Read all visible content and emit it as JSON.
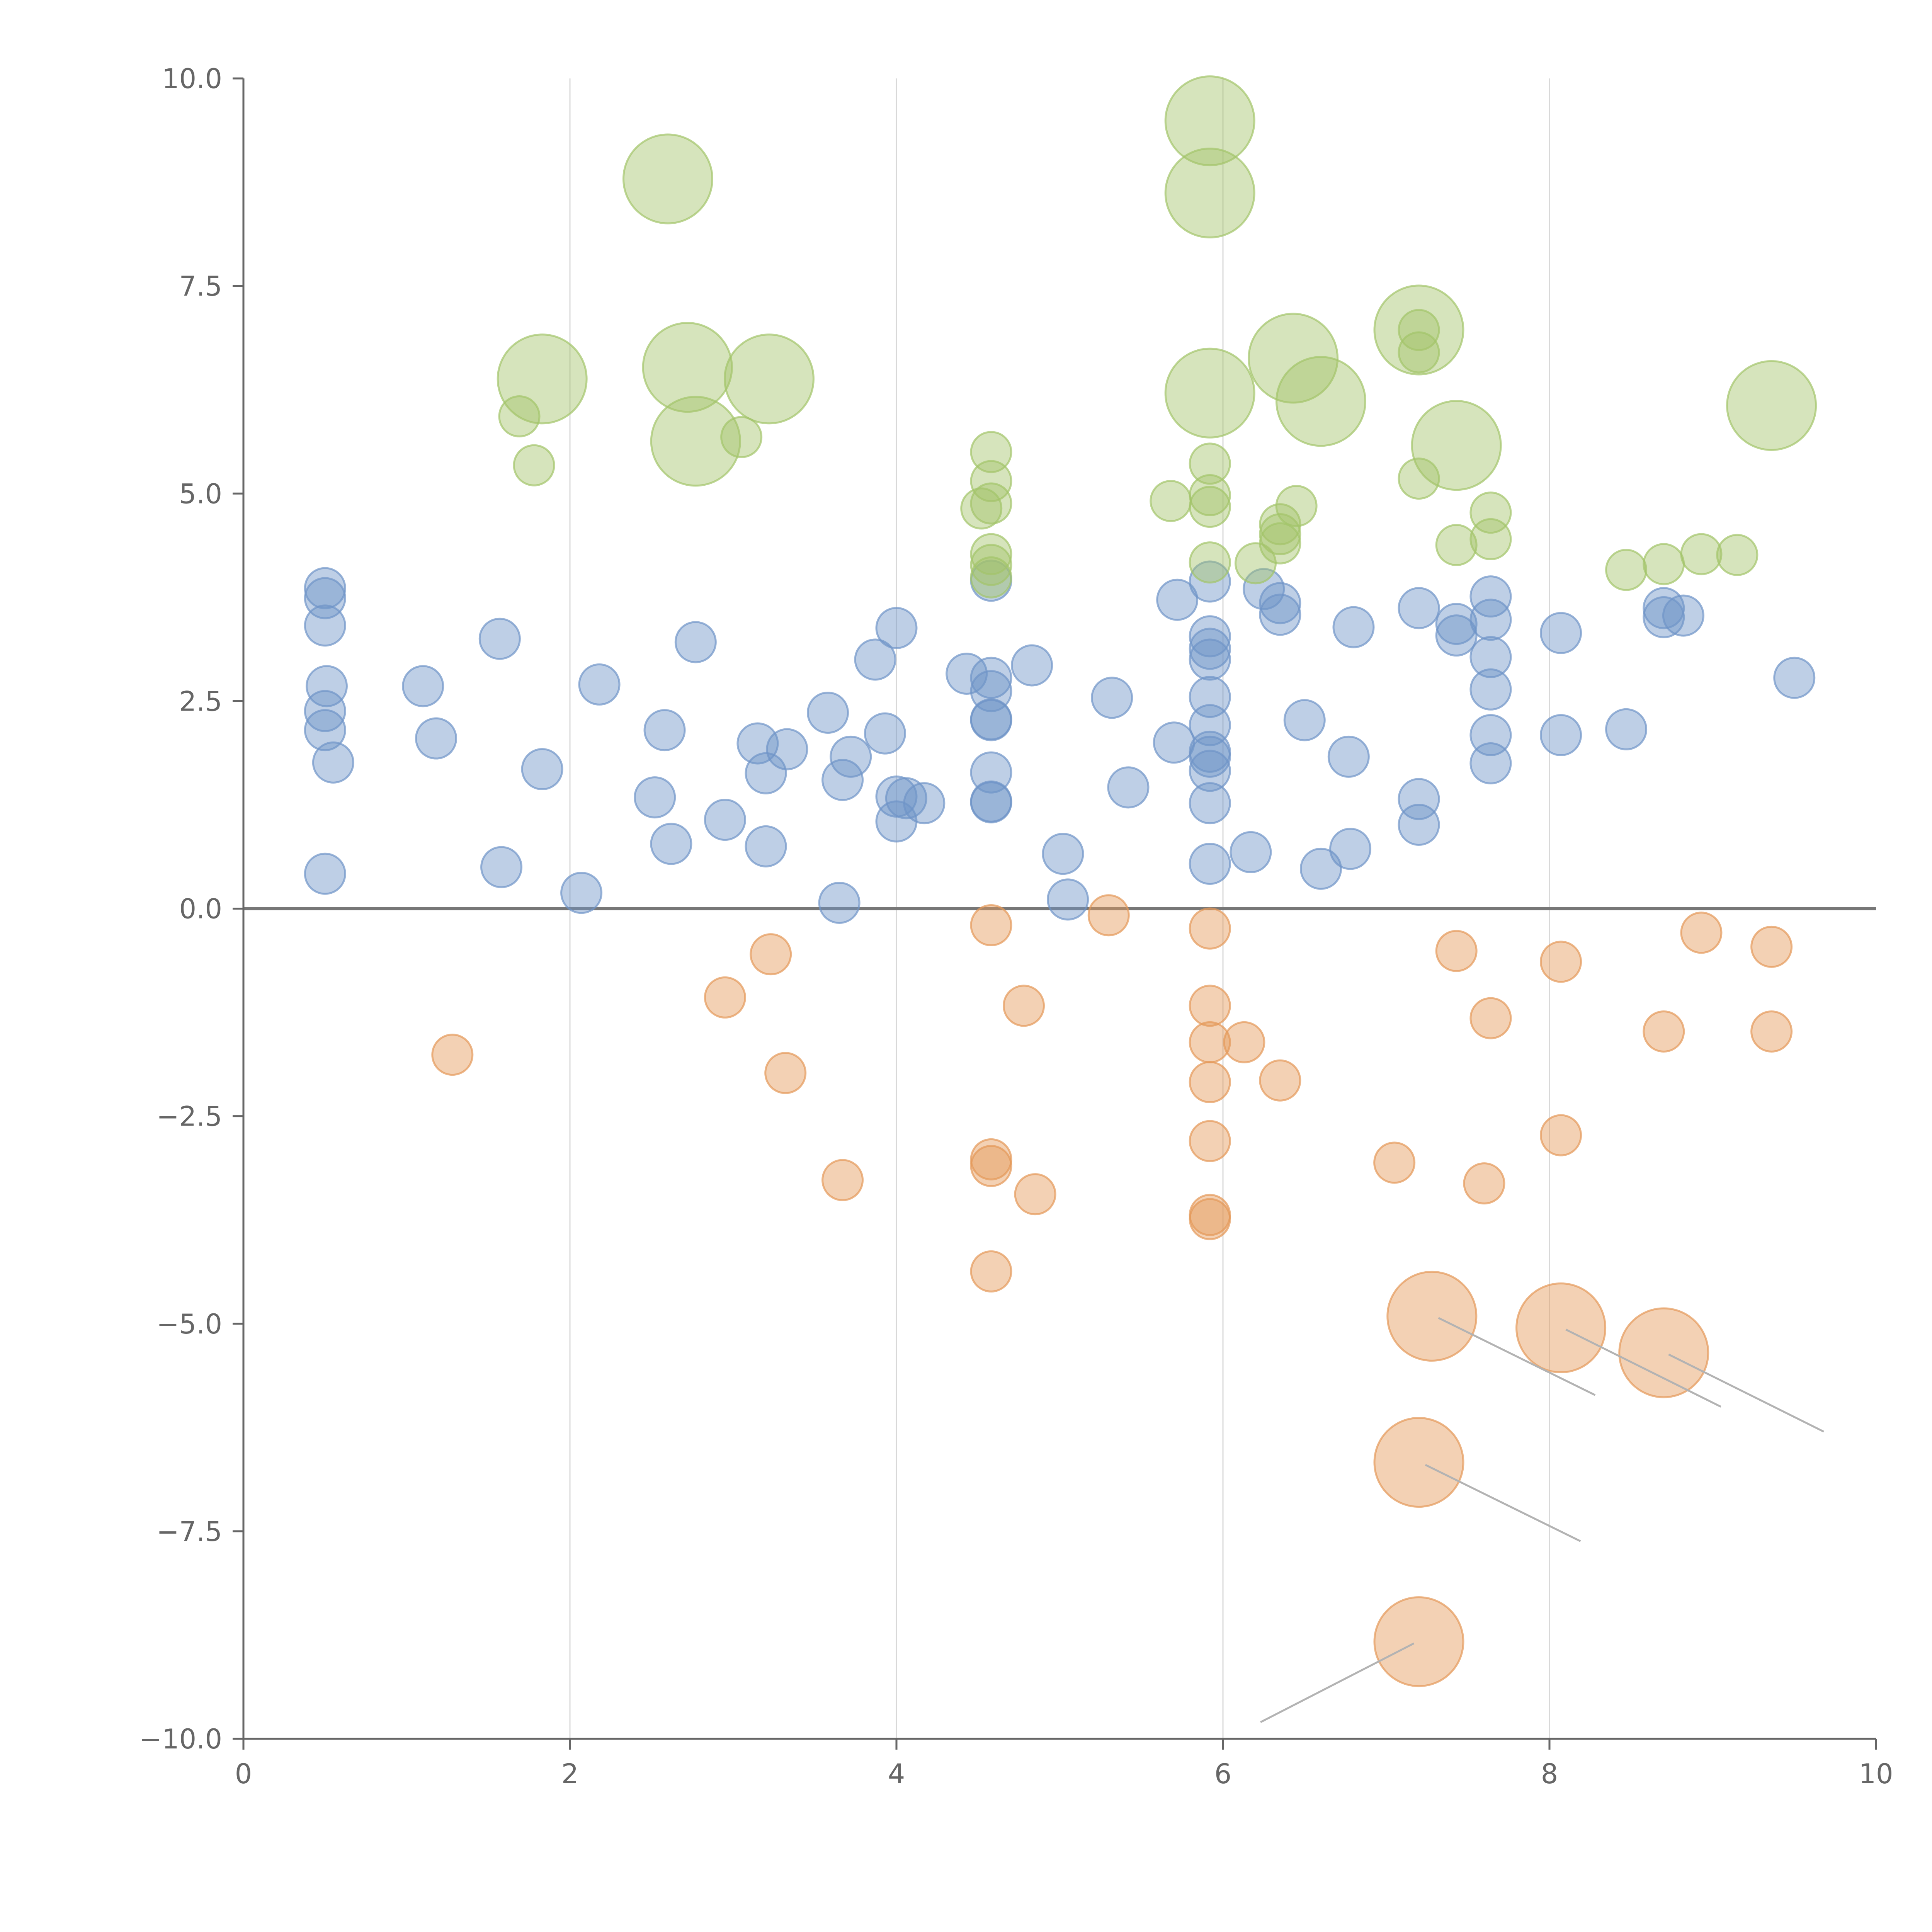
{
  "colors": {
    "positive": "#6f94c8",
    "high": "#a3c46a",
    "negative": "#e49858",
    "axis": "#666666",
    "grid": "#d8d8d8",
    "leader": "#b3b3b3"
  },
  "chart_data": {
    "type": "scatter",
    "title": "",
    "xlabel": "",
    "ylabel": "",
    "xlim": [
      0,
      10
    ],
    "ylim": [
      -10,
      10
    ],
    "x_ticks": [
      0,
      2,
      4,
      6,
      8,
      10
    ],
    "x_tick_labels": [
      "0",
      "2",
      "4",
      "6",
      "8",
      "10"
    ],
    "y_ticks": [
      10,
      7.5,
      5,
      2.5,
      0,
      -2.5,
      -5,
      -7.5,
      -10
    ],
    "y_tick_labels": [
      "10.0",
      "7.5",
      "5.0",
      "2.5",
      "0.0",
      "−2.5",
      "−5.0",
      "−7.5",
      "−10.0"
    ],
    "grid": "vertical lines at x = 2, 4, 6, 8",
    "reference_line": 0,
    "legend": "none",
    "series": [
      {
        "color_key": "positive",
        "points": [
          {
            "x": 0.5,
            "y": 3.86,
            "r": 1
          },
          {
            "x": 0.5,
            "y": 3.74,
            "r": 1
          },
          {
            "x": 0.5,
            "y": 3.41,
            "r": 1
          },
          {
            "x": 0.51,
            "y": 2.68,
            "r": 1
          },
          {
            "x": 0.5,
            "y": 2.38,
            "r": 1
          },
          {
            "x": 0.5,
            "y": 2.15,
            "r": 1
          },
          {
            "x": 0.55,
            "y": 1.76,
            "r": 1
          },
          {
            "x": 0.5,
            "y": 0.42,
            "r": 1
          },
          {
            "x": 1.1,
            "y": 2.68,
            "r": 1
          },
          {
            "x": 1.18,
            "y": 2.05,
            "r": 1
          },
          {
            "x": 1.57,
            "y": 3.25,
            "r": 1
          },
          {
            "x": 1.58,
            "y": 0.5,
            "r": 1
          },
          {
            "x": 1.83,
            "y": 1.68,
            "r": 1
          },
          {
            "x": 2.07,
            "y": 0.19,
            "r": 1
          },
          {
            "x": 2.18,
            "y": 2.7,
            "r": 1
          },
          {
            "x": 2.52,
            "y": 1.34,
            "r": 1
          },
          {
            "x": 2.58,
            "y": 2.15,
            "r": 1
          },
          {
            "x": 2.62,
            "y": 0.78,
            "r": 1
          },
          {
            "x": 2.77,
            "y": 3.21,
            "r": 1
          },
          {
            "x": 2.95,
            "y": 1.07,
            "r": 1
          },
          {
            "x": 3.15,
            "y": 1.99,
            "r": 1
          },
          {
            "x": 3.2,
            "y": 1.63,
            "r": 1
          },
          {
            "x": 3.2,
            "y": 0.75,
            "r": 1
          },
          {
            "x": 3.33,
            "y": 1.92,
            "r": 1
          },
          {
            "x": 3.58,
            "y": 2.36,
            "r": 1
          },
          {
            "x": 3.65,
            "y": 0.07,
            "r": 1
          },
          {
            "x": 3.67,
            "y": 1.55,
            "r": 1
          },
          {
            "x": 3.72,
            "y": 1.83,
            "r": 1
          },
          {
            "x": 3.87,
            "y": 3.0,
            "r": 1
          },
          {
            "x": 3.93,
            "y": 2.11,
            "r": 1
          },
          {
            "x": 4.0,
            "y": 3.38,
            "r": 1
          },
          {
            "x": 4.0,
            "y": 1.35,
            "r": 1
          },
          {
            "x": 4.0,
            "y": 1.05,
            "r": 1
          },
          {
            "x": 4.06,
            "y": 1.33,
            "r": 1
          },
          {
            "x": 4.17,
            "y": 1.27,
            "r": 1
          },
          {
            "x": 4.43,
            "y": 2.83,
            "r": 1
          },
          {
            "x": 4.58,
            "y": 3.95,
            "r": 1
          },
          {
            "x": 4.58,
            "y": 2.78,
            "r": 1
          },
          {
            "x": 4.58,
            "y": 2.62,
            "r": 1
          },
          {
            "x": 4.58,
            "y": 2.28,
            "r": 1
          },
          {
            "x": 4.58,
            "y": 2.27,
            "r": 1
          },
          {
            "x": 4.58,
            "y": 1.64,
            "r": 1
          },
          {
            "x": 4.58,
            "y": 1.29,
            "r": 1
          },
          {
            "x": 4.58,
            "y": 1.28,
            "r": 1
          },
          {
            "x": 4.83,
            "y": 2.93,
            "r": 1
          },
          {
            "x": 5.02,
            "y": 0.66,
            "r": 1
          },
          {
            "x": 5.05,
            "y": 0.11,
            "r": 1
          },
          {
            "x": 5.32,
            "y": 2.54,
            "r": 1
          },
          {
            "x": 5.42,
            "y": 1.46,
            "r": 1
          },
          {
            "x": 5.7,
            "y": 2.0,
            "r": 1
          },
          {
            "x": 5.72,
            "y": 3.72,
            "r": 1
          },
          {
            "x": 5.92,
            "y": 3.94,
            "r": 1
          },
          {
            "x": 5.92,
            "y": 3.28,
            "r": 1
          },
          {
            "x": 5.92,
            "y": 3.13,
            "r": 1
          },
          {
            "x": 5.92,
            "y": 3.0,
            "r": 1
          },
          {
            "x": 5.92,
            "y": 2.55,
            "r": 1
          },
          {
            "x": 5.92,
            "y": 2.21,
            "r": 1
          },
          {
            "x": 5.92,
            "y": 1.89,
            "r": 1
          },
          {
            "x": 5.92,
            "y": 1.83,
            "r": 1
          },
          {
            "x": 5.92,
            "y": 1.66,
            "r": 1
          },
          {
            "x": 5.92,
            "y": 1.27,
            "r": 1
          },
          {
            "x": 5.92,
            "y": 0.54,
            "r": 1
          },
          {
            "x": 6.17,
            "y": 0.68,
            "r": 1
          },
          {
            "x": 6.25,
            "y": 3.85,
            "r": 1
          },
          {
            "x": 6.35,
            "y": 3.68,
            "r": 1
          },
          {
            "x": 6.35,
            "y": 3.54,
            "r": 1
          },
          {
            "x": 6.5,
            "y": 2.27,
            "r": 1
          },
          {
            "x": 6.6,
            "y": 0.48,
            "r": 1
          },
          {
            "x": 6.77,
            "y": 1.83,
            "r": 1
          },
          {
            "x": 6.78,
            "y": 0.72,
            "r": 1
          },
          {
            "x": 6.8,
            "y": 3.39,
            "r": 1
          },
          {
            "x": 7.2,
            "y": 3.62,
            "r": 1
          },
          {
            "x": 7.2,
            "y": 1.32,
            "r": 1
          },
          {
            "x": 7.2,
            "y": 1.01,
            "r": 1
          },
          {
            "x": 7.43,
            "y": 3.43,
            "r": 1
          },
          {
            "x": 7.43,
            "y": 3.29,
            "r": 1
          },
          {
            "x": 7.64,
            "y": 3.76,
            "r": 1
          },
          {
            "x": 7.64,
            "y": 3.48,
            "r": 1
          },
          {
            "x": 7.64,
            "y": 3.03,
            "r": 1
          },
          {
            "x": 7.64,
            "y": 2.64,
            "r": 1
          },
          {
            "x": 7.64,
            "y": 2.09,
            "r": 1
          },
          {
            "x": 7.64,
            "y": 1.75,
            "r": 1
          },
          {
            "x": 8.07,
            "y": 3.32,
            "r": 1
          },
          {
            "x": 8.07,
            "y": 2.09,
            "r": 1
          },
          {
            "x": 8.47,
            "y": 2.16,
            "r": 1
          },
          {
            "x": 8.7,
            "y": 3.62,
            "r": 1
          },
          {
            "x": 8.7,
            "y": 3.51,
            "r": 1
          },
          {
            "x": 8.82,
            "y": 3.53,
            "r": 1
          },
          {
            "x": 9.5,
            "y": 2.78,
            "r": 1
          }
        ]
      },
      {
        "color_key": "high",
        "points": [
          {
            "x": 2.6,
            "y": 8.79,
            "r": 2
          },
          {
            "x": 1.83,
            "y": 6.38,
            "r": 2
          },
          {
            "x": 2.72,
            "y": 6.52,
            "r": 2
          },
          {
            "x": 3.22,
            "y": 6.38,
            "r": 2
          },
          {
            "x": 2.77,
            "y": 5.63,
            "r": 2
          },
          {
            "x": 1.69,
            "y": 5.93,
            "r": 1
          },
          {
            "x": 1.78,
            "y": 5.34,
            "r": 1
          },
          {
            "x": 3.05,
            "y": 5.68,
            "r": 1
          },
          {
            "x": 5.92,
            "y": 9.49,
            "r": 2
          },
          {
            "x": 5.92,
            "y": 8.62,
            "r": 2
          },
          {
            "x": 5.92,
            "y": 6.21,
            "r": 2
          },
          {
            "x": 6.43,
            "y": 6.63,
            "r": 2
          },
          {
            "x": 6.6,
            "y": 6.11,
            "r": 2
          },
          {
            "x": 7.2,
            "y": 6.97,
            "r": 2
          },
          {
            "x": 7.43,
            "y": 5.58,
            "r": 2
          },
          {
            "x": 9.36,
            "y": 6.06,
            "r": 2
          },
          {
            "x": 4.58,
            "y": 5.5,
            "r": 1
          },
          {
            "x": 4.58,
            "y": 5.15,
            "r": 1
          },
          {
            "x": 4.58,
            "y": 4.88,
            "r": 1
          },
          {
            "x": 4.52,
            "y": 4.82,
            "r": 1
          },
          {
            "x": 4.58,
            "y": 4.27,
            "r": 1
          },
          {
            "x": 4.58,
            "y": 4.14,
            "r": 1
          },
          {
            "x": 4.58,
            "y": 3.99,
            "r": 1
          },
          {
            "x": 5.68,
            "y": 4.91,
            "r": 1
          },
          {
            "x": 5.92,
            "y": 5.36,
            "r": 1
          },
          {
            "x": 5.92,
            "y": 4.98,
            "r": 1
          },
          {
            "x": 5.92,
            "y": 4.84,
            "r": 1
          },
          {
            "x": 5.92,
            "y": 4.17,
            "r": 1
          },
          {
            "x": 6.2,
            "y": 4.16,
            "r": 1
          },
          {
            "x": 6.35,
            "y": 4.63,
            "r": 1
          },
          {
            "x": 6.35,
            "y": 4.51,
            "r": 1
          },
          {
            "x": 6.35,
            "y": 4.4,
            "r": 1
          },
          {
            "x": 6.45,
            "y": 4.85,
            "r": 1
          },
          {
            "x": 7.2,
            "y": 6.97,
            "r": 1
          },
          {
            "x": 7.2,
            "y": 6.7,
            "r": 1
          },
          {
            "x": 7.2,
            "y": 5.18,
            "r": 1
          },
          {
            "x": 7.43,
            "y": 4.38,
            "r": 1
          },
          {
            "x": 7.64,
            "y": 4.77,
            "r": 1
          },
          {
            "x": 7.64,
            "y": 4.45,
            "r": 1
          },
          {
            "x": 8.47,
            "y": 4.08,
            "r": 1
          },
          {
            "x": 8.7,
            "y": 4.15,
            "r": 1
          },
          {
            "x": 8.93,
            "y": 4.27,
            "r": 1
          },
          {
            "x": 9.15,
            "y": 4.26,
            "r": 1
          }
        ]
      },
      {
        "color_key": "negative",
        "points": [
          {
            "x": 1.28,
            "y": -1.76,
            "r": 1
          },
          {
            "x": 2.95,
            "y": -1.07,
            "r": 1
          },
          {
            "x": 3.23,
            "y": -0.55,
            "r": 1
          },
          {
            "x": 3.32,
            "y": -1.98,
            "r": 1
          },
          {
            "x": 3.67,
            "y": -3.27,
            "r": 1
          },
          {
            "x": 4.58,
            "y": -0.2,
            "r": 1
          },
          {
            "x": 4.58,
            "y": -3.02,
            "r": 1
          },
          {
            "x": 4.58,
            "y": -3.1,
            "r": 1
          },
          {
            "x": 4.58,
            "y": -4.37,
            "r": 1
          },
          {
            "x": 4.78,
            "y": -1.17,
            "r": 1
          },
          {
            "x": 4.85,
            "y": -3.44,
            "r": 1
          },
          {
            "x": 5.3,
            "y": -0.08,
            "r": 1
          },
          {
            "x": 5.92,
            "y": -0.24,
            "r": 1
          },
          {
            "x": 5.92,
            "y": -1.17,
            "r": 1
          },
          {
            "x": 5.92,
            "y": -1.61,
            "r": 1
          },
          {
            "x": 5.92,
            "y": -2.09,
            "r": 1
          },
          {
            "x": 5.92,
            "y": -2.8,
            "r": 1
          },
          {
            "x": 5.92,
            "y": -3.69,
            "r": 1
          },
          {
            "x": 5.92,
            "y": -3.74,
            "r": 1
          },
          {
            "x": 6.13,
            "y": -1.61,
            "r": 1
          },
          {
            "x": 6.35,
            "y": -2.07,
            "r": 1
          },
          {
            "x": 7.05,
            "y": -3.06,
            "r": 1
          },
          {
            "x": 7.43,
            "y": -0.51,
            "r": 1
          },
          {
            "x": 7.6,
            "y": -3.31,
            "r": 1
          },
          {
            "x": 7.64,
            "y": -1.32,
            "r": 1
          },
          {
            "x": 8.07,
            "y": -0.64,
            "r": 1
          },
          {
            "x": 8.07,
            "y": -2.73,
            "r": 1
          },
          {
            "x": 8.7,
            "y": -1.48,
            "r": 1
          },
          {
            "x": 8.93,
            "y": -0.29,
            "r": 1
          },
          {
            "x": 9.36,
            "y": -0.46,
            "r": 1
          },
          {
            "x": 9.36,
            "y": -1.48,
            "r": 1
          },
          {
            "x": 7.28,
            "y": -4.91,
            "r": 2
          },
          {
            "x": 8.07,
            "y": -5.05,
            "r": 2
          },
          {
            "x": 8.7,
            "y": -5.35,
            "r": 2
          },
          {
            "x": 7.2,
            "y": -6.67,
            "r": 2
          },
          {
            "x": 7.2,
            "y": -8.83,
            "r": 2
          }
        ]
      }
    ],
    "leader_lines": [
      {
        "from": [
          7.32,
          -4.93
        ],
        "to": [
          8.28,
          -5.86
        ],
        "color_key": "leader"
      },
      {
        "from": [
          8.1,
          -5.07
        ],
        "to": [
          9.05,
          -6.0
        ],
        "color_key": "leader"
      },
      {
        "from": [
          8.73,
          -5.37
        ],
        "to": [
          9.68,
          -6.3
        ],
        "color_key": "leader"
      },
      {
        "from": [
          7.24,
          -6.7
        ],
        "to": [
          8.19,
          -7.62
        ],
        "color_key": "leader"
      },
      {
        "from": [
          7.17,
          -8.85
        ],
        "to": [
          6.23,
          -9.8
        ],
        "color_key": "leader"
      }
    ]
  }
}
